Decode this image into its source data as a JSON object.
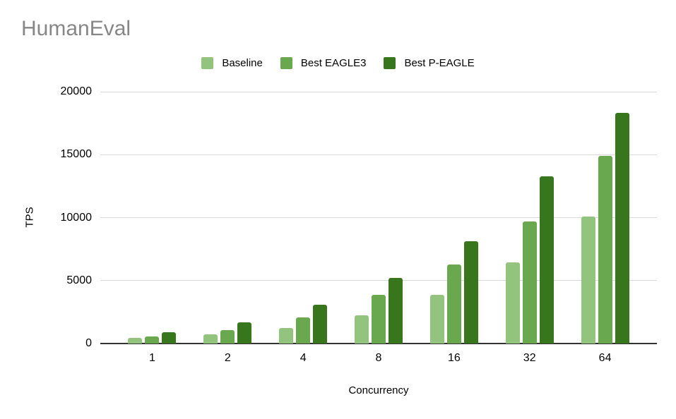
{
  "chart_data": {
    "type": "bar",
    "title": "HumanEval",
    "xlabel": "Concurrency",
    "ylabel": "TPS",
    "categories": [
      "1",
      "2",
      "4",
      "8",
      "16",
      "32",
      "64"
    ],
    "series": [
      {
        "name": "Baseline",
        "color": "#93c47d",
        "values": [
          430,
          720,
          1230,
          2250,
          3840,
          6430,
          10110
        ]
      },
      {
        "name": "Best EAGLE3",
        "color": "#6aa84f",
        "values": [
          550,
          1080,
          2060,
          3870,
          6250,
          9670,
          14910
        ]
      },
      {
        "name": "Best P-EAGLE",
        "color": "#38761d",
        "values": [
          920,
          1700,
          3080,
          5230,
          8140,
          13260,
          18300
        ]
      }
    ],
    "ylim": [
      0,
      20000
    ],
    "yticks": [
      0,
      5000,
      10000,
      15000,
      20000
    ],
    "grid": true,
    "legend_position": "top"
  },
  "style": {
    "title_color": "#878787",
    "grid_color": "#d9d9d9",
    "axis_color": "#333333",
    "text_color": "#000000",
    "background": "#ffffff"
  }
}
